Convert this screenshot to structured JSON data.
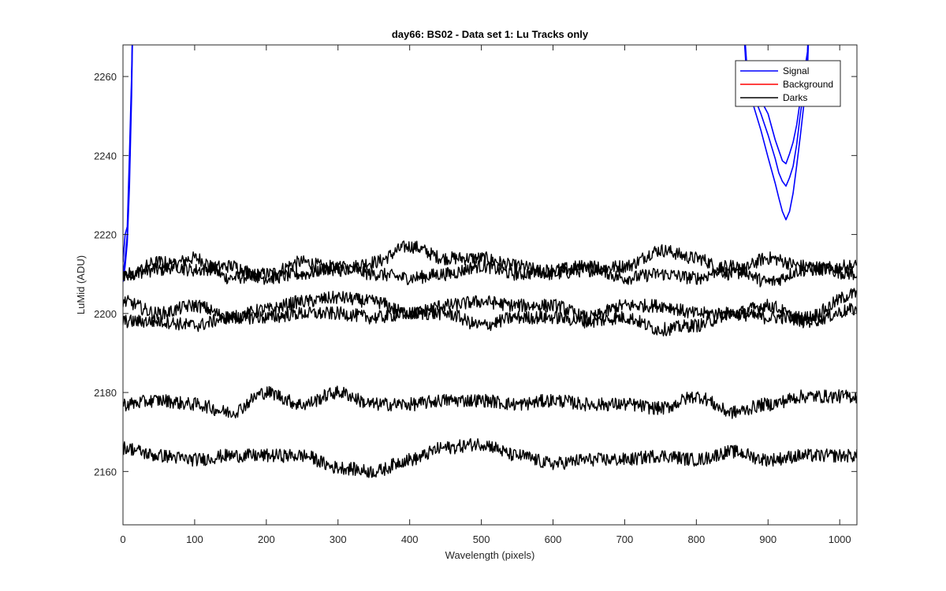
{
  "chart_data": {
    "type": "line",
    "title": "day66: BS02 - Data set 1: Lu Tracks only",
    "xlabel": "Wavelength (pixels)",
    "ylabel": "LuMid (ADU)",
    "xlim": [
      0,
      1024
    ],
    "ylim": [
      2146.5,
      2268
    ],
    "xticks": [
      0,
      100,
      200,
      300,
      400,
      500,
      600,
      700,
      800,
      900,
      1000
    ],
    "yticks": [
      2160,
      2180,
      2200,
      2220,
      2240,
      2260
    ],
    "grid": false,
    "legend": {
      "position": "top-right",
      "entries": [
        {
          "label": "Signal",
          "color": "#0000ff"
        },
        {
          "label": "Background",
          "color": "#ff0000"
        },
        {
          "label": "Darks",
          "color": "#000000"
        }
      ]
    },
    "series": [
      {
        "group": "Signal",
        "color": "#0000ff",
        "x": [
          0,
          3,
          6,
          9,
          12,
          15,
          860,
          870,
          880,
          890,
          900,
          910,
          915,
          920,
          925,
          930,
          935,
          940,
          945,
          950,
          955,
          960
        ],
        "y": [
          2213,
          2220,
          2222,
          2240,
          2260,
          2290,
          2290,
          2262,
          2255,
          2250,
          2245,
          2239,
          2236,
          2233,
          2232,
          2234,
          2237,
          2243,
          2250,
          2257,
          2264,
          2290
        ]
      },
      {
        "group": "Signal",
        "color": "#0000ff",
        "x": [
          0,
          3,
          6,
          9,
          12,
          15,
          860,
          870,
          880,
          890,
          900,
          910,
          915,
          920,
          925,
          930,
          935,
          940,
          945,
          950,
          955,
          960
        ],
        "y": [
          2210,
          2214,
          2220,
          2236,
          2258,
          2290,
          2290,
          2260,
          2252,
          2246,
          2240,
          2233,
          2229,
          2226,
          2224,
          2226,
          2230,
          2237,
          2245,
          2253,
          2261,
          2290
        ]
      },
      {
        "group": "Signal",
        "color": "#0000ff",
        "x": [
          0,
          3,
          6,
          9,
          12,
          15,
          860,
          870,
          880,
          890,
          900,
          910,
          915,
          920,
          925,
          930,
          935,
          940,
          945,
          950,
          955,
          960
        ],
        "y": [
          2208,
          2212,
          2218,
          2232,
          2255,
          2290,
          2290,
          2264,
          2258,
          2254,
          2250,
          2244,
          2241,
          2239,
          2238,
          2240,
          2243,
          2248,
          2254,
          2260,
          2266,
          2290
        ]
      },
      {
        "group": "Darks",
        "color": "#000000",
        "x": [
          0,
          50,
          100,
          150,
          200,
          250,
          300,
          350,
          400,
          450,
          500,
          550,
          600,
          650,
          700,
          750,
          800,
          850,
          900,
          950,
          1024
        ],
        "y": [
          2210,
          2211,
          2214,
          2209,
          2210,
          2213,
          2211,
          2213,
          2217,
          2214,
          2214,
          2212,
          2210,
          2211,
          2212,
          2216,
          2214,
          2210,
          2214,
          2212,
          2210
        ]
      },
      {
        "group": "Darks",
        "color": "#000000",
        "x": [
          0,
          50,
          100,
          150,
          200,
          250,
          300,
          350,
          400,
          450,
          500,
          550,
          600,
          650,
          700,
          750,
          800,
          850,
          900,
          950,
          1024
        ],
        "y": [
          2209,
          2213,
          2211,
          2212,
          2209,
          2210,
          2212,
          2210,
          2209,
          2210,
          2212,
          2210,
          2211,
          2212,
          2209,
          2210,
          2209,
          2212,
          2208,
          2211,
          2212
        ]
      },
      {
        "group": "Darks",
        "color": "#000000",
        "x": [
          0,
          50,
          100,
          150,
          200,
          250,
          300,
          350,
          400,
          450,
          500,
          550,
          600,
          650,
          700,
          750,
          800,
          850,
          900,
          950,
          1024
        ],
        "y": [
          2203,
          2200,
          2202,
          2199,
          2201,
          2203,
          2204,
          2203,
          2200,
          2202,
          2203,
          2202,
          2202,
          2199,
          2202,
          2202,
          2200,
          2200,
          2199,
          2199,
          2205
        ]
      },
      {
        "group": "Darks",
        "color": "#000000",
        "x": [
          0,
          50,
          100,
          150,
          200,
          250,
          300,
          350,
          400,
          450,
          500,
          550,
          600,
          650,
          700,
          750,
          800,
          850,
          900,
          950,
          1024
        ],
        "y": [
          2198,
          2198,
          2197,
          2199,
          2199,
          2200,
          2200,
          2199,
          2200,
          2200,
          2197,
          2199,
          2199,
          2198,
          2199,
          2196,
          2197,
          2200,
          2202,
          2198,
          2201
        ]
      },
      {
        "group": "Darks",
        "color": "#000000",
        "x": [
          0,
          50,
          100,
          150,
          200,
          250,
          300,
          350,
          400,
          450,
          500,
          550,
          600,
          650,
          700,
          750,
          800,
          850,
          900,
          950,
          1024
        ],
        "y": [
          2177,
          2178,
          2177,
          2175,
          2180,
          2177,
          2180,
          2177,
          2177,
          2178,
          2178,
          2177,
          2178,
          2177,
          2177,
          2176,
          2179,
          2175,
          2177,
          2179,
          2179
        ]
      },
      {
        "group": "Darks",
        "color": "#000000",
        "x": [
          0,
          50,
          100,
          150,
          200,
          250,
          300,
          350,
          400,
          450,
          500,
          550,
          600,
          650,
          700,
          750,
          800,
          850,
          900,
          950,
          1024
        ],
        "y": [
          2166,
          2164,
          2163,
          2164,
          2164,
          2164,
          2161,
          2160,
          2163,
          2166,
          2167,
          2164,
          2162,
          2163,
          2163,
          2164,
          2163,
          2165,
          2163,
          2164,
          2164
        ]
      }
    ]
  }
}
